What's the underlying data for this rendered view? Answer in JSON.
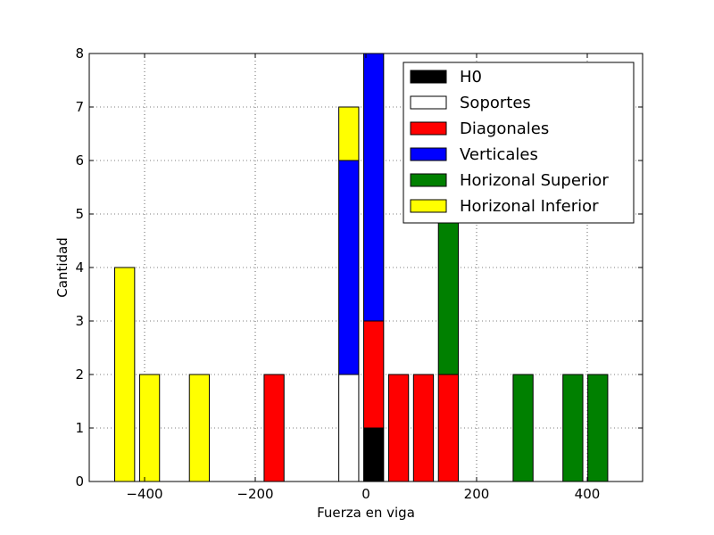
{
  "chart_data": {
    "type": "bar",
    "stacked": true,
    "xlabel": "Fuerza en viga",
    "ylabel": "Cantidad",
    "xlim": [
      -500,
      500
    ],
    "ylim": [
      0,
      8
    ],
    "x_ticks": [
      -400,
      -200,
      0,
      200,
      400
    ],
    "x_tick_labels": [
      "−400",
      "−200",
      "0",
      "200",
      "400"
    ],
    "y_ticks": [
      0,
      1,
      2,
      3,
      4,
      5,
      6,
      7,
      8
    ],
    "y_tick_labels": [
      "0",
      "1",
      "2",
      "3",
      "4",
      "5",
      "6",
      "7",
      "8"
    ],
    "grid": true,
    "legend_position": "top-right",
    "bin_width": 36,
    "bin_centers": [
      -436,
      -391,
      -346,
      -301,
      -256,
      -211,
      -166,
      -121,
      -76,
      -31,
      14,
      59,
      104,
      149,
      194,
      239,
      284,
      329,
      374,
      419
    ],
    "series": [
      {
        "name": "H0",
        "color": "#000000",
        "values": [
          0,
          0,
          0,
          0,
          0,
          0,
          0,
          0,
          0,
          0,
          1,
          0,
          0,
          0,
          0,
          0,
          0,
          0,
          0,
          0
        ]
      },
      {
        "name": "Soportes",
        "color": "#ffffff",
        "values": [
          0,
          0,
          0,
          0,
          0,
          0,
          0,
          0,
          0,
          2,
          0,
          0,
          0,
          0,
          0,
          0,
          0,
          0,
          0,
          0
        ]
      },
      {
        "name": "Diagonales",
        "color": "#ff0000",
        "values": [
          0,
          0,
          0,
          0,
          0,
          0,
          2,
          0,
          0,
          0,
          2,
          2,
          2,
          2,
          0,
          0,
          0,
          0,
          0,
          0
        ]
      },
      {
        "name": "Verticales",
        "color": "#0000ff",
        "values": [
          0,
          0,
          0,
          0,
          0,
          0,
          0,
          0,
          0,
          4,
          5,
          0,
          0,
          0,
          0,
          0,
          0,
          0,
          0,
          0
        ]
      },
      {
        "name": "Horizonal Superior",
        "color": "#008000",
        "values": [
          0,
          0,
          0,
          0,
          0,
          0,
          0,
          0,
          0,
          0,
          0,
          0,
          0,
          3,
          0,
          0,
          2,
          0,
          2,
          2
        ]
      },
      {
        "name": "Horizonal Inferior",
        "color": "#ffff00",
        "values": [
          4,
          2,
          0,
          2,
          0,
          0,
          0,
          0,
          0,
          1,
          0,
          0,
          0,
          0,
          0,
          0,
          0,
          0,
          0,
          0
        ]
      }
    ]
  }
}
